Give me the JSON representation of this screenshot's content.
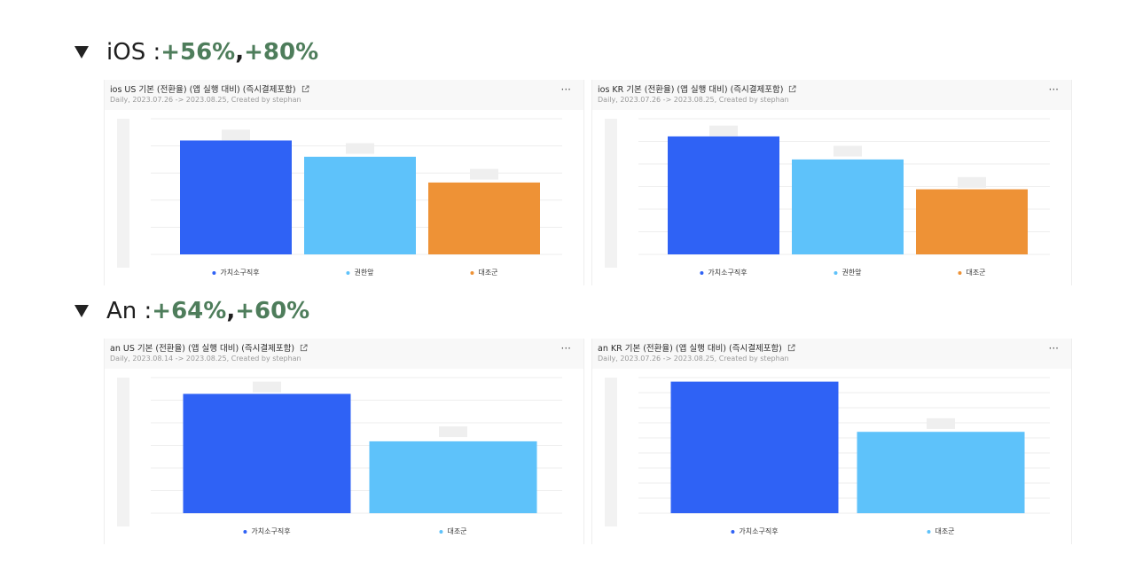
{
  "sections": [
    {
      "prefix": "iOS : ",
      "first": "+56%",
      "separator": ",",
      "second": " +80%"
    },
    {
      "prefix": "An : ",
      "first": "+64%",
      "separator": ",",
      "second": " +60%"
    }
  ],
  "colors": {
    "blue": "#2f62f5",
    "light_blue": "#5ec2fa",
    "orange": "#ee9236"
  },
  "chart_data": [
    {
      "type": "bar",
      "title": "ios US 기본 (전환율) (앱 실행 대비) (즉시결제포함)",
      "subtitle": "Daily, 2023.07.26 -> 2023.08.25, Created by stephan",
      "categories": [
        "가치소구직후",
        "권한앞",
        "대조군"
      ],
      "values": [
        0.84,
        0.72,
        0.53
      ],
      "ghost_values": [
        0.92,
        0.82,
        0.63
      ],
      "series_colors": [
        "#2f62f5",
        "#5ec2fa",
        "#ee9236"
      ],
      "ylim": [
        0,
        1
      ],
      "gridlines": 5
    },
    {
      "type": "bar",
      "title": "ios KR 기본 (전환율) (앱 실행 대비) (즉시결제포함)",
      "subtitle": "Daily, 2023.07.26 -> 2023.08.25, Created by stephan",
      "categories": [
        "가치소구직후",
        "권한앞",
        "대조군"
      ],
      "values": [
        0.87,
        0.7,
        0.48
      ],
      "ghost_values": [
        0.95,
        0.8,
        0.57
      ],
      "series_colors": [
        "#2f62f5",
        "#5ec2fa",
        "#ee9236"
      ],
      "ylim": [
        0,
        1
      ],
      "gridlines": 6
    },
    {
      "type": "bar",
      "title": "an US 기본 (전환율) (앱 실행 대비) (즉시결제포함)",
      "subtitle": "Daily, 2023.08.14 -> 2023.08.25, Created by stephan",
      "categories": [
        "가치소구직후",
        "대조군"
      ],
      "values": [
        0.88,
        0.53
      ],
      "ghost_values": [
        0.97,
        0.64
      ],
      "series_colors": [
        "#2f62f5",
        "#5ec2fa"
      ],
      "ylim": [
        0,
        1
      ],
      "gridlines": 6
    },
    {
      "type": "bar",
      "title": "an KR 기본 (전환율) (앱 실행 대비) (즉시결제포함)",
      "subtitle": "Daily, 2023.07.26 -> 2023.08.25, Created by stephan",
      "categories": [
        "가치소구직후",
        "대조군"
      ],
      "values": [
        0.97,
        0.6
      ],
      "ghost_values": [
        0.9,
        0.7
      ],
      "series_colors": [
        "#2f62f5",
        "#5ec2fa"
      ],
      "ylim": [
        0,
        1
      ],
      "gridlines": 9
    }
  ]
}
